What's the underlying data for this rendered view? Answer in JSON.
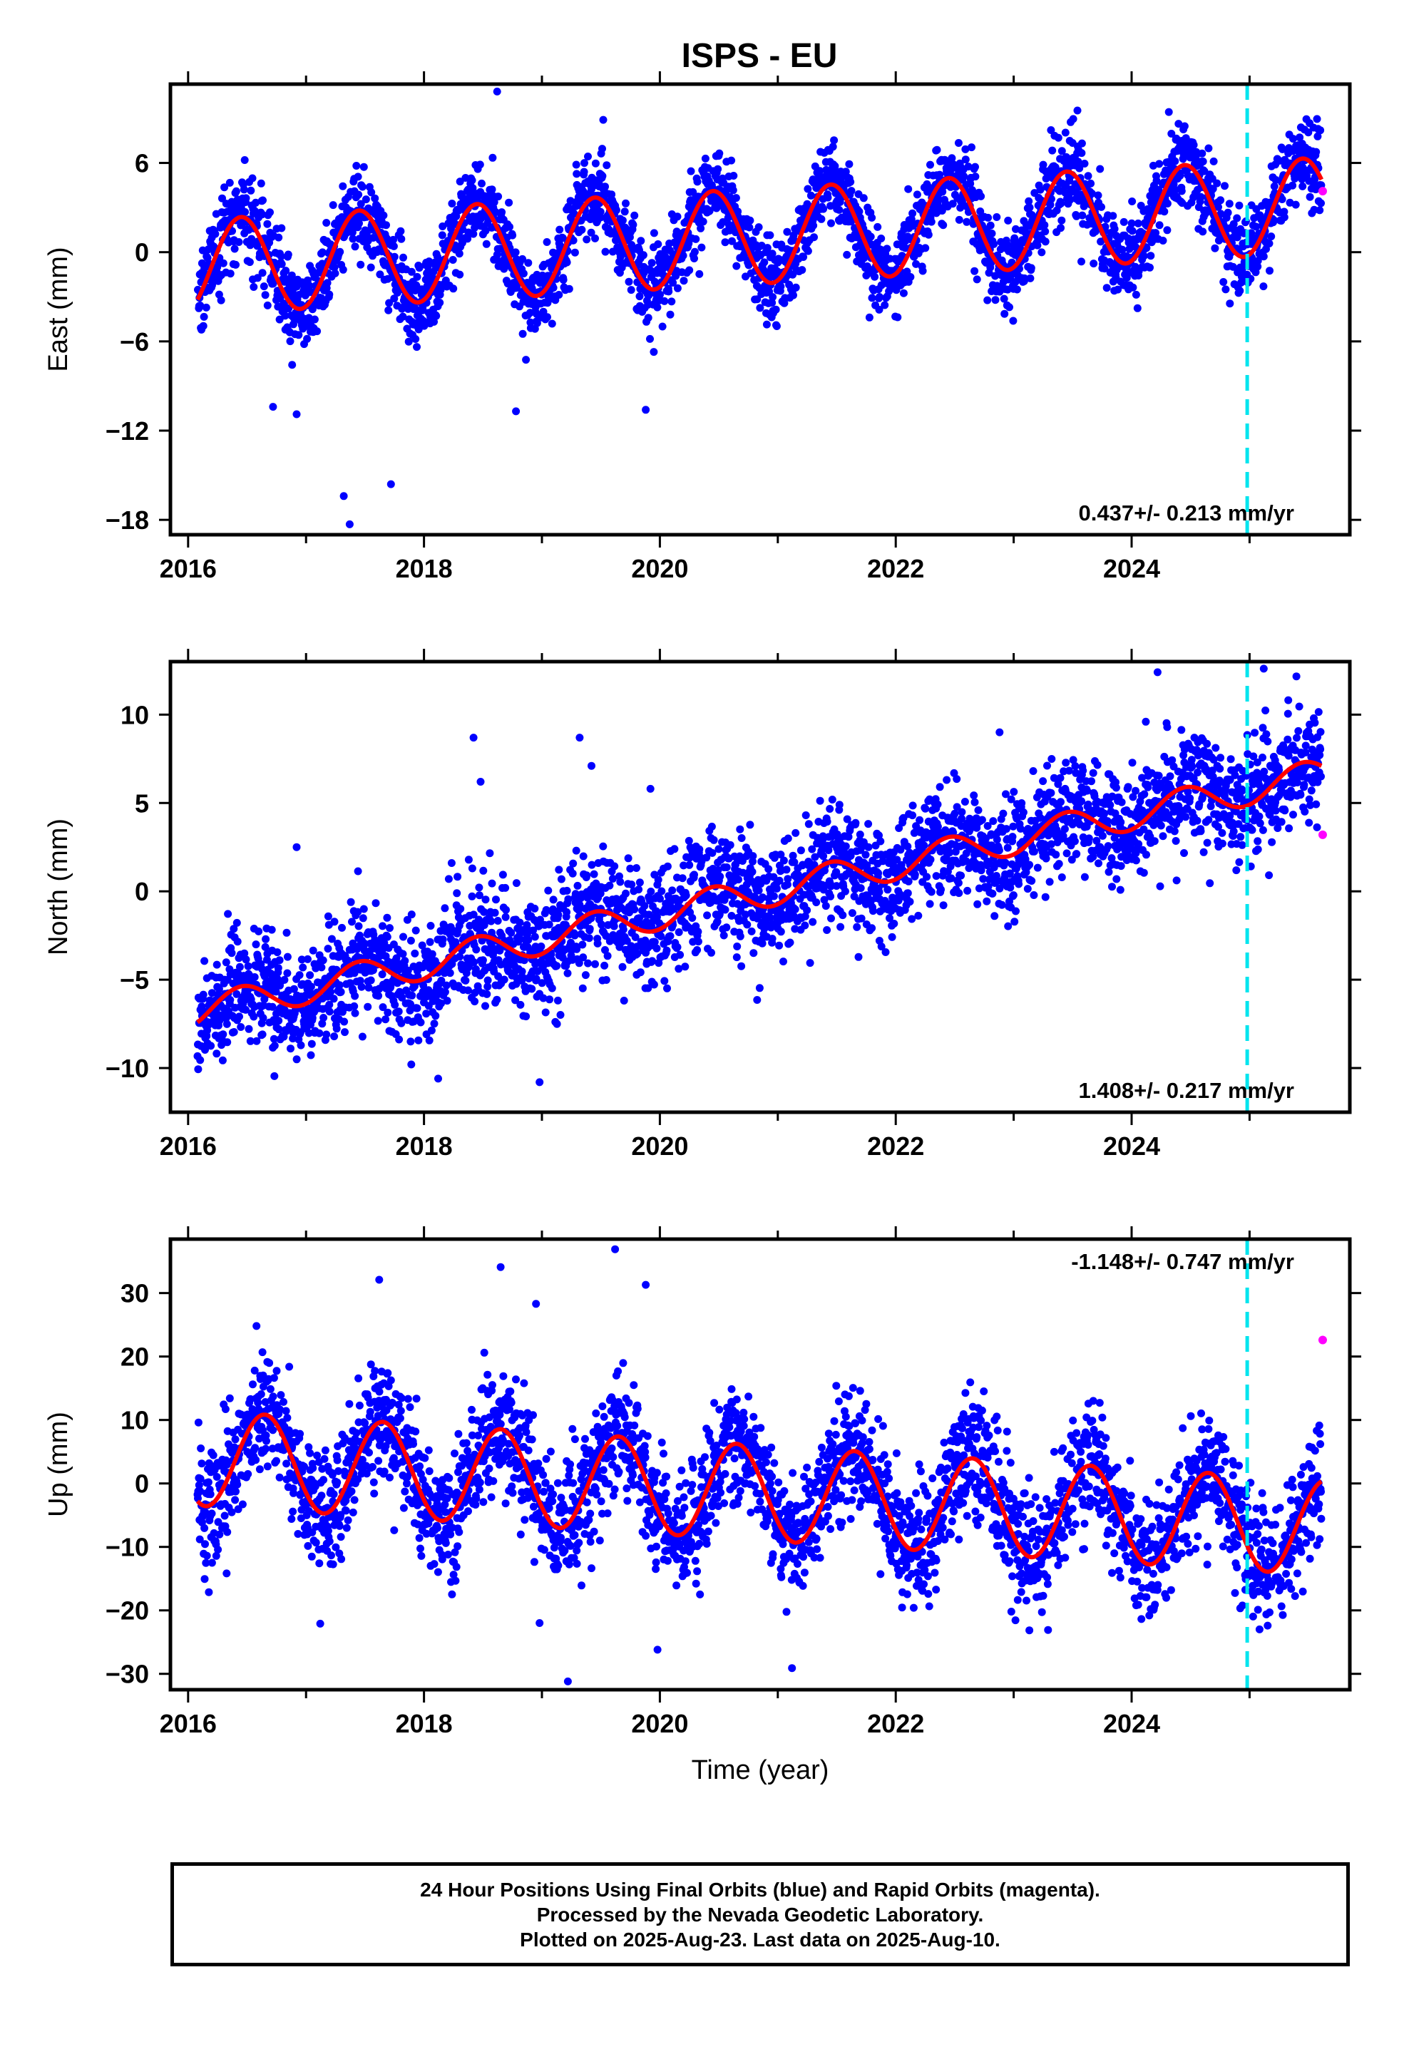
{
  "title": "ISPS - EU",
  "footer": {
    "line1": "24 Hour Positions Using Final Orbits (blue) and Rapid Orbits (magenta).",
    "line2": "Processed by the Nevada Geodetic Laboratory.",
    "line3": "Plotted on 2025-Aug-23. Last data on 2025-Aug-10."
  },
  "colors": {
    "final_points": "#0000ff",
    "rapid_points": "#ff00ff",
    "model_fit": "#ff0000",
    "marker_line": "#00e5ee"
  },
  "chart_data": [
    {
      "type": "scatter",
      "component": "east",
      "title": "ISPS - EU",
      "xlabel": "",
      "ylabel": "East (mm)",
      "xlim": [
        2015.85,
        2025.85
      ],
      "ylim": [
        -19,
        11.3
      ],
      "xticks": [
        2016,
        2018,
        2020,
        2022,
        2024
      ],
      "yticks": [
        6,
        0,
        -6,
        -12,
        -18
      ],
      "rate_label": "0.437+/- 0.213 mm/yr",
      "start": 2016.08,
      "end": 2025.61,
      "trend": {
        "offset": -1.0,
        "ref": 2016.08,
        "rate": 0.437
      },
      "annual": {
        "amp": 3.2,
        "peak": 0.45
      },
      "scatter_sd": 1.4,
      "marker_line_x": 2024.98,
      "rapid_points": [
        [
          2025.62,
          4.1
        ]
      ],
      "outliers": [
        [
          2017.32,
          -16.4
        ],
        [
          2017.37,
          -18.3
        ],
        [
          2017.72,
          -15.6
        ],
        [
          2016.72,
          -10.4
        ],
        [
          2016.92,
          -10.9
        ],
        [
          2018.62,
          10.8
        ],
        [
          2018.78,
          -10.7
        ],
        [
          2019.88,
          -10.6
        ],
        [
          2019.52,
          8.9
        ]
      ],
      "series": [
        {
          "name": "Final Orbits",
          "color": "#0000ff"
        },
        {
          "name": "Rapid Orbits",
          "color": "#ff00ff"
        },
        {
          "name": "Model",
          "color": "#ff0000"
        }
      ]
    },
    {
      "type": "scatter",
      "component": "north",
      "xlabel": "",
      "ylabel": "North (mm)",
      "xlim": [
        2015.85,
        2025.85
      ],
      "ylim": [
        -12.5,
        13.0
      ],
      "xticks": [
        2016,
        2018,
        2020,
        2022,
        2024
      ],
      "yticks": [
        10,
        5,
        0,
        -5,
        -10
      ],
      "rate_label": "1.408+/- 0.217 mm/yr",
      "start": 2016.08,
      "end": 2025.61,
      "trend": {
        "offset": -6.8,
        "ref": 2016.08,
        "rate": 1.408
      },
      "annual": {
        "amp": 0.9,
        "peak": 0.45
      },
      "scatter_sd": 1.6,
      "marker_line_x": 2024.98,
      "rapid_points": [
        [
          2025.62,
          3.2
        ]
      ],
      "outliers": [
        [
          2016.92,
          2.5
        ],
        [
          2018.42,
          8.7
        ],
        [
          2018.48,
          6.2
        ],
        [
          2018.98,
          -10.8
        ],
        [
          2019.32,
          8.7
        ],
        [
          2019.42,
          7.1
        ],
        [
          2019.92,
          5.8
        ],
        [
          2024.22,
          12.4
        ],
        [
          2025.12,
          12.6
        ],
        [
          2024.12,
          9.6
        ],
        [
          2022.88,
          9.0
        ],
        [
          2018.12,
          -10.6
        ]
      ],
      "series": [
        {
          "name": "Final Orbits",
          "color": "#0000ff"
        },
        {
          "name": "Rapid Orbits",
          "color": "#ff00ff"
        },
        {
          "name": "Model",
          "color": "#ff0000"
        }
      ]
    },
    {
      "type": "scatter",
      "component": "up",
      "xlabel": "Time (year)",
      "ylabel": "Up (mm)",
      "xlim": [
        2015.85,
        2025.85
      ],
      "ylim": [
        -32.5,
        38.5
      ],
      "xticks": [
        2016,
        2018,
        2020,
        2022,
        2024
      ],
      "yticks": [
        30,
        20,
        10,
        0,
        -10,
        -20,
        -30
      ],
      "rate_label": "-1.148+/- 0.747 mm/yr",
      "start": 2016.08,
      "end": 2025.61,
      "trend": {
        "offset": 4.0,
        "ref": 2016.08,
        "rate": -1.148
      },
      "annual": {
        "amp": 7.5,
        "peak": 0.65
      },
      "scatter_sd": 4.8,
      "marker_line_x": 2024.98,
      "rapid_points": [
        [
          2025.62,
          22.6
        ]
      ],
      "outliers": [
        [
          2017.62,
          32.1
        ],
        [
          2018.65,
          34.1
        ],
        [
          2019.62,
          36.9
        ],
        [
          2019.88,
          31.3
        ],
        [
          2018.95,
          28.3
        ],
        [
          2019.22,
          -31.2
        ],
        [
          2021.12,
          -29.1
        ],
        [
          2016.58,
          24.8
        ],
        [
          2017.12,
          -22.1
        ],
        [
          2018.98,
          -22.0
        ],
        [
          2019.98,
          -26.2
        ],
        [
          2024.15,
          -20.8
        ],
        [
          2022.98,
          -20.2
        ]
      ],
      "series": [
        {
          "name": "Final Orbits",
          "color": "#0000ff"
        },
        {
          "name": "Rapid Orbits",
          "color": "#ff00ff"
        },
        {
          "name": "Model",
          "color": "#ff0000"
        }
      ]
    }
  ]
}
